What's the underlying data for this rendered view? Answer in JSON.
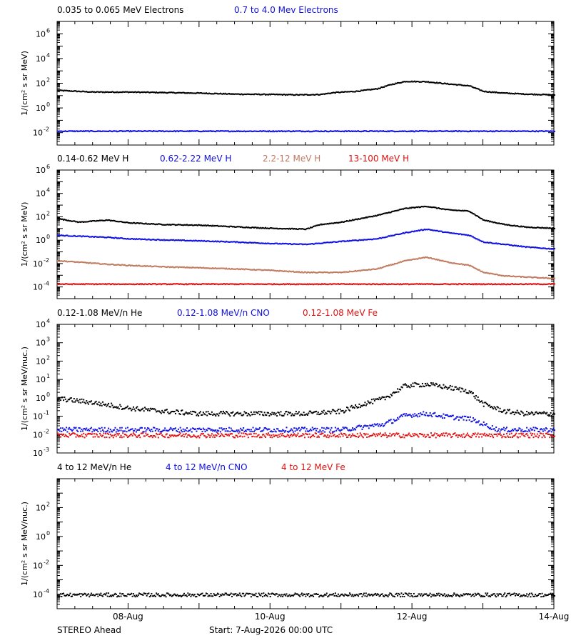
{
  "chart_data": [
    {
      "type": "scatter",
      "ylabel": "1/(cm² s sr MeV)",
      "yscale": "log",
      "ylim_exp": [
        -3,
        7
      ],
      "ytick_exps": [
        -2,
        0,
        2,
        4,
        6
      ],
      "legend": [
        "0.035 to 0.065 MeV Electrons",
        "0.7 to 4.0 Mev Electrons"
      ],
      "series": [
        {
          "name": "0.035 to 0.065 MeV Electrons",
          "color": "#000000",
          "x": [
            0,
            0.5,
            1,
            1.5,
            2,
            2.5,
            3,
            3.4,
            3.7,
            3.9,
            4.2,
            4.5,
            4.7,
            4.9,
            5.2,
            5.5,
            5.8,
            6,
            6.3,
            6.6,
            7
          ],
          "y": [
            30,
            22,
            22,
            20,
            18,
            15,
            14,
            13,
            14,
            20,
            25,
            40,
            90,
            160,
            150,
            100,
            70,
            25,
            18,
            15,
            13
          ]
        },
        {
          "name": "0.7 to 4.0 Mev Electrons",
          "color": "#1010e0",
          "x": [
            0,
            7
          ],
          "y": [
            0.015,
            0.015
          ]
        }
      ]
    },
    {
      "type": "scatter",
      "ylabel": "1/(cm² s sr MeV)",
      "yscale": "log",
      "ylim_exp": [
        -5,
        6
      ],
      "ytick_exps": [
        -4,
        -2,
        0,
        2,
        4,
        6
      ],
      "legend": [
        "0.14-0.62 MeV H",
        "0.62-2.22 MeV H",
        "2.2-12 MeV H",
        "13-100 MeV H"
      ],
      "series": [
        {
          "name": "0.14-0.62 MeV H",
          "color": "#000000",
          "x": [
            0,
            0.3,
            0.7,
            1,
            1.5,
            2,
            2.5,
            3,
            3.5,
            3.7,
            4,
            4.5,
            4.9,
            5.2,
            5.5,
            5.8,
            6,
            6.3,
            6.6,
            7
          ],
          "y": [
            80,
            40,
            60,
            35,
            25,
            22,
            16,
            12,
            10,
            25,
            40,
            150,
            600,
            900,
            450,
            350,
            60,
            25,
            15,
            12
          ]
        },
        {
          "name": "0.62-2.22 MeV H",
          "color": "#1010e0",
          "x": [
            0,
            0.3,
            0.7,
            1,
            1.5,
            2,
            2.5,
            3,
            3.5,
            4,
            4.5,
            4.9,
            5.2,
            5.5,
            5.8,
            6,
            6.3,
            6.6,
            7
          ],
          "y": [
            3,
            2.5,
            2,
            1.5,
            1.2,
            1,
            0.8,
            0.6,
            0.5,
            0.9,
            1.5,
            5,
            10,
            5,
            3,
            0.8,
            0.5,
            0.3,
            0.2
          ]
        },
        {
          "name": "2.2-12 MeV H",
          "color": "#c07a60",
          "x": [
            0,
            0.3,
            0.7,
            1,
            1.5,
            2,
            2.5,
            3,
            3.5,
            4,
            4.5,
            4.9,
            5.2,
            5.5,
            5.8,
            6,
            6.3,
            6.6,
            7
          ],
          "y": [
            0.02,
            0.015,
            0.01,
            0.008,
            0.006,
            0.005,
            0.004,
            0.003,
            0.002,
            0.002,
            0.004,
            0.02,
            0.04,
            0.015,
            0.008,
            0.002,
            0.001,
            0.0008,
            0.0006
          ]
        },
        {
          "name": "13-100 MeV H",
          "color": "#e01010",
          "x": [
            0,
            7
          ],
          "y": [
            0.0002,
            0.0002
          ]
        }
      ]
    },
    {
      "type": "scatter",
      "ylabel": "1/(cm² s sr MeV/nuc.)",
      "yscale": "log",
      "ylim_exp": [
        -3,
        4
      ],
      "ytick_exps": [
        -3,
        -2,
        -1,
        0,
        1,
        2,
        3,
        4
      ],
      "legend": [
        "0.12-1.08 MeV/n He",
        "0.12-1.08 MeV/n CNO",
        "0.12-1.08 MeV Fe"
      ],
      "series": [
        {
          "name": "0.12-1.08 MeV/n He",
          "color": "#000000",
          "x": [
            0,
            0.5,
            1,
            1.5,
            2,
            2.5,
            3,
            3.5,
            4,
            4.3,
            4.6,
            4.9,
            5.2,
            5.5,
            5.8,
            6,
            6.3,
            6.6,
            7
          ],
          "y": [
            1,
            0.6,
            0.3,
            0.2,
            0.15,
            0.15,
            0.15,
            0.15,
            0.2,
            0.5,
            1,
            5,
            6,
            4,
            2.5,
            0.5,
            0.2,
            0.15,
            0.15
          ]
        },
        {
          "name": "0.12-1.08 MeV/n CNO",
          "color": "#1010e0",
          "x": [
            0,
            1,
            2,
            3,
            4,
            4.6,
            4.9,
            5.2,
            5.5,
            5.8,
            6.2,
            7
          ],
          "y": [
            0.02,
            0.02,
            0.02,
            0.02,
            0.02,
            0.04,
            0.12,
            0.15,
            0.1,
            0.08,
            0.02,
            0.02
          ]
        },
        {
          "name": "0.12-1.08 MeV Fe",
          "color": "#e01010",
          "x": [
            0,
            7
          ],
          "y": [
            0.01,
            0.01
          ]
        }
      ]
    },
    {
      "type": "scatter",
      "ylabel": "1/(cm² s sr MeV/nuc.)",
      "yscale": "log",
      "ylim_exp": [
        -5,
        4
      ],
      "ytick_exps": [
        -4,
        -2,
        0,
        2
      ],
      "legend": [
        "4 to 12 MeV/n He",
        "4 to 12 MeV/n CNO",
        "4 to 12 MeV Fe"
      ],
      "series": [
        {
          "name": "4 to 12 MeV/n He",
          "color": "#000000",
          "x": [
            0,
            1,
            2,
            3,
            4,
            5,
            6,
            7
          ],
          "y": [
            0.0001,
            0.0001,
            0.0001,
            0.0001,
            0.0001,
            0.0001,
            0.0001,
            0.0001
          ]
        },
        {
          "name": "4 to 12 MeV/n CNO",
          "color": "#1010e0",
          "x": [],
          "y": []
        },
        {
          "name": "4 to 12 MeV Fe",
          "color": "#e01010",
          "x": [],
          "y": []
        }
      ]
    }
  ],
  "x_axis": {
    "tick_labels": [
      "08-Aug",
      "10-Aug",
      "12-Aug",
      "14-Aug"
    ],
    "tick_days": [
      1,
      3,
      5,
      7
    ],
    "range_days": [
      0,
      7
    ]
  },
  "footer": {
    "spacecraft": "STEREO Ahead",
    "start": "Start:  7-Aug-2026 00:00 UTC"
  }
}
